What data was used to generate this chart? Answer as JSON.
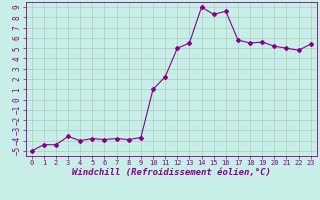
{
  "x": [
    0,
    1,
    2,
    3,
    4,
    5,
    6,
    7,
    8,
    9,
    10,
    11,
    12,
    13,
    14,
    15,
    16,
    17,
    18,
    19,
    20,
    21,
    22,
    23
  ],
  "y": [
    -5.0,
    -4.4,
    -4.4,
    -3.6,
    -4.0,
    -3.8,
    -3.9,
    -3.8,
    -3.9,
    -3.7,
    1.0,
    2.2,
    5.0,
    5.5,
    9.0,
    8.3,
    8.6,
    5.8,
    5.5,
    5.6,
    5.2,
    5.0,
    4.8,
    5.4
  ],
  "line_color": "#880088",
  "marker": "D",
  "marker_size": 2.0,
  "linewidth": 0.8,
  "xlabel": "Windchill (Refroidissement éolien,°C)",
  "xlabel_fontsize": 6.5,
  "bg_color": "#c8eee8",
  "grid_color": "#aaccbb",
  "axis_label_color": "#880088",
  "tick_label_color": "#880088",
  "xlim": [
    -0.5,
    23.5
  ],
  "ylim": [
    -5.5,
    9.5
  ],
  "yticks": [
    -5,
    -4,
    -3,
    -2,
    -1,
    0,
    1,
    2,
    3,
    4,
    5,
    6,
    7,
    8,
    9
  ],
  "xticks": [
    0,
    1,
    2,
    3,
    4,
    5,
    6,
    7,
    8,
    9,
    10,
    11,
    12,
    13,
    14,
    15,
    16,
    17,
    18,
    19,
    20,
    21,
    22,
    23
  ]
}
